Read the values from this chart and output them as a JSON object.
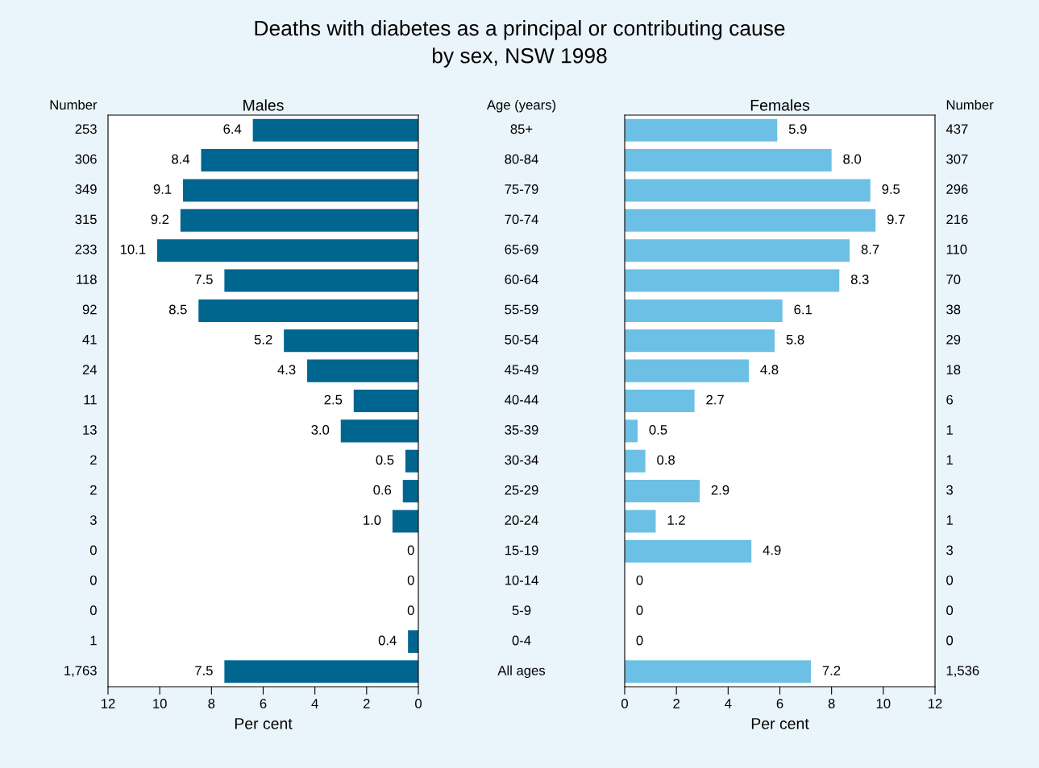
{
  "chart_data": [
    {
      "type": "bar",
      "orientation": "horizontal",
      "title": "Deaths with diabetes as a principal or contributing cause\nby sex, NSW 1998",
      "subtitle": "Males",
      "xlabel": "Per cent",
      "categories": [
        null,
        null,
        null,
        null,
        null,
        null,
        null,
        null,
        null,
        null,
        null,
        null,
        null,
        null,
        null,
        null,
        null,
        null,
        null
      ],
      "values": [
        6.4,
        8.4,
        9.1,
        9.2,
        10.1,
        7.5,
        8.5,
        5.2,
        4.3,
        2.5,
        3.0,
        0.5,
        0.6,
        1.0,
        0,
        0,
        0,
        0.4,
        7.5
      ],
      "value_labels": [
        "6.4",
        "8.4",
        "9.1",
        "9.2",
        "10.1",
        "7.5",
        "8.5",
        "5.2",
        "4.3",
        "2.5",
        "3.0",
        "0.5",
        "0.6",
        "1.0",
        "0",
        "0",
        "0",
        "0.4",
        "7.5"
      ],
      "color": "#006690",
      "xlim": [
        12,
        0
      ],
      "xticks": [
        12,
        10,
        8,
        6,
        4,
        2,
        0
      ],
      "grid": false,
      "tick_labels": "x",
      "annotations": [
        "Number",
        "253",
        "306",
        "349",
        "315",
        "233",
        "118",
        "92",
        "41",
        "24",
        "11",
        "13",
        "2",
        "2",
        "3",
        "0",
        "0",
        "0",
        "1",
        "1,763"
      ]
    },
    {
      "type": "bar",
      "orientation": "horizontal",
      "subtitle": "Females",
      "xlabel": "Per cent",
      "categories": [
        "85+",
        "80-84",
        "75-79",
        "70-74",
        "65-69",
        "60-64",
        "55-59",
        "50-54",
        "45-49",
        "40-44",
        "35-39",
        "30-34",
        "25-29",
        "20-24",
        "15-19",
        "10-14",
        "5-9",
        "0-4",
        "All ages"
      ],
      "values": [
        5.9,
        8.0,
        9.5,
        9.7,
        8.7,
        8.3,
        6.1,
        5.8,
        4.8,
        2.7,
        0.5,
        0.8,
        2.9,
        1.2,
        4.9,
        0,
        0,
        0,
        7.2
      ],
      "value_labels": [
        "5.9",
        "8.0",
        "9.5",
        "9.7",
        "8.7",
        "8.3",
        "6.1",
        "5.8",
        "4.8",
        "2.7",
        "0.5",
        "0.8",
        "2.9",
        "1.2",
        "4.9",
        "0",
        "0",
        "0",
        "7.2"
      ],
      "color": "#6cc0e5",
      "xlim": [
        0,
        12
      ],
      "xticks": [
        0,
        2,
        4,
        6,
        8,
        10,
        12
      ],
      "grid": false,
      "tick_labels": true,
      "annotations": [
        "Number",
        "Age (years)",
        "437",
        "307",
        "296",
        "216",
        "110",
        "70",
        "38",
        "29",
        "18",
        "6",
        "1",
        "1",
        "3",
        "1",
        "3",
        "0",
        "0",
        "0",
        "1,536"
      ]
    }
  ]
}
